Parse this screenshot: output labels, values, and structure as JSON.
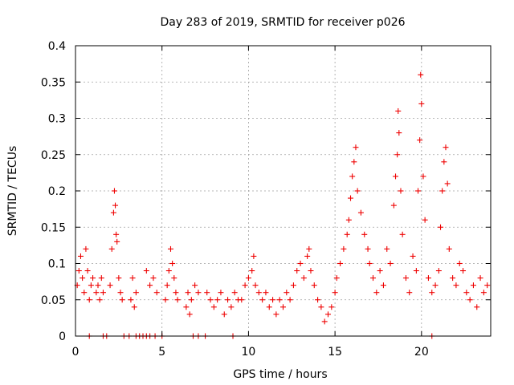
{
  "chart_data": {
    "type": "scatter",
    "title": "Day 283 of 2019, SRMTID for receiver p026",
    "xlabel": "GPS time / hours",
    "ylabel": "SRMTID / TECUs",
    "xlim": [
      0,
      24
    ],
    "ylim": [
      0,
      0.4
    ],
    "xticks": [
      0,
      5,
      10,
      15,
      20
    ],
    "xtick_labels": [
      "0",
      "5",
      "10",
      "15",
      "20"
    ],
    "yticks": [
      0,
      0.05,
      0.1,
      0.15,
      0.2,
      0.25,
      0.3,
      0.35,
      0.4
    ],
    "ytick_labels": [
      "0",
      "0.05",
      "0.1",
      "0.15",
      "0.2",
      "0.25",
      "0.3",
      "0.35",
      "0.4"
    ],
    "grid": true,
    "marker": "plus",
    "color": "#ee0000",
    "series": [
      {
        "name": "SRMTID",
        "points": [
          [
            0.1,
            0.07
          ],
          [
            0.2,
            0.09
          ],
          [
            0.3,
            0.11
          ],
          [
            0.4,
            0.08
          ],
          [
            0.5,
            0.06
          ],
          [
            0.6,
            0.12
          ],
          [
            0.7,
            0.09
          ],
          [
            0.8,
            0.05
          ],
          [
            0.9,
            0.07
          ],
          [
            1.0,
            0.08
          ],
          [
            1.2,
            0.06
          ],
          [
            1.3,
            0.07
          ],
          [
            1.4,
            0.05
          ],
          [
            1.5,
            0.08
          ],
          [
            1.6,
            0.06
          ],
          [
            2.0,
            0.07
          ],
          [
            2.1,
            0.12
          ],
          [
            2.2,
            0.17
          ],
          [
            2.25,
            0.2
          ],
          [
            2.3,
            0.18
          ],
          [
            2.35,
            0.14
          ],
          [
            2.4,
            0.13
          ],
          [
            2.5,
            0.08
          ],
          [
            2.6,
            0.06
          ],
          [
            2.7,
            0.05
          ],
          [
            3.2,
            0.05
          ],
          [
            3.3,
            0.08
          ],
          [
            3.4,
            0.04
          ],
          [
            3.5,
            0.06
          ],
          [
            4.1,
            0.09
          ],
          [
            4.3,
            0.07
          ],
          [
            4.5,
            0.08
          ],
          [
            4.7,
            0.06
          ],
          [
            5.2,
            0.05
          ],
          [
            5.3,
            0.07
          ],
          [
            5.4,
            0.09
          ],
          [
            5.5,
            0.12
          ],
          [
            5.6,
            0.1
          ],
          [
            5.7,
            0.08
          ],
          [
            5.8,
            0.06
          ],
          [
            5.9,
            0.05
          ],
          [
            6.4,
            0.04
          ],
          [
            6.5,
            0.06
          ],
          [
            6.6,
            0.03
          ],
          [
            6.7,
            0.05
          ],
          [
            6.9,
            0.07
          ],
          [
            7.1,
            0.06
          ],
          [
            7.6,
            0.06
          ],
          [
            7.8,
            0.05
          ],
          [
            8.0,
            0.04
          ],
          [
            8.2,
            0.05
          ],
          [
            8.4,
            0.06
          ],
          [
            8.6,
            0.03
          ],
          [
            8.8,
            0.05
          ],
          [
            9.0,
            0.04
          ],
          [
            9.2,
            0.06
          ],
          [
            9.4,
            0.05
          ],
          [
            9.6,
            0.05
          ],
          [
            9.8,
            0.07
          ],
          [
            10.0,
            0.08
          ],
          [
            10.2,
            0.09
          ],
          [
            10.3,
            0.11
          ],
          [
            10.4,
            0.07
          ],
          [
            10.6,
            0.06
          ],
          [
            10.8,
            0.05
          ],
          [
            11.0,
            0.06
          ],
          [
            11.2,
            0.04
          ],
          [
            11.4,
            0.05
          ],
          [
            11.6,
            0.03
          ],
          [
            11.8,
            0.05
          ],
          [
            12.0,
            0.04
          ],
          [
            12.2,
            0.06
          ],
          [
            12.4,
            0.05
          ],
          [
            12.6,
            0.07
          ],
          [
            12.8,
            0.09
          ],
          [
            13.0,
            0.1
          ],
          [
            13.2,
            0.08
          ],
          [
            13.4,
            0.11
          ],
          [
            13.5,
            0.12
          ],
          [
            13.6,
            0.09
          ],
          [
            13.8,
            0.07
          ],
          [
            14.0,
            0.05
          ],
          [
            14.2,
            0.04
          ],
          [
            14.4,
            0.02
          ],
          [
            14.6,
            0.03
          ],
          [
            14.8,
            0.04
          ],
          [
            15.0,
            0.06
          ],
          [
            15.1,
            0.08
          ],
          [
            15.3,
            0.1
          ],
          [
            15.5,
            0.12
          ],
          [
            15.7,
            0.14
          ],
          [
            15.8,
            0.16
          ],
          [
            15.9,
            0.19
          ],
          [
            16.0,
            0.22
          ],
          [
            16.1,
            0.24
          ],
          [
            16.2,
            0.26
          ],
          [
            16.3,
            0.2
          ],
          [
            16.5,
            0.17
          ],
          [
            16.7,
            0.14
          ],
          [
            16.9,
            0.12
          ],
          [
            17.0,
            0.1
          ],
          [
            17.2,
            0.08
          ],
          [
            17.4,
            0.06
          ],
          [
            17.6,
            0.09
          ],
          [
            17.8,
            0.07
          ],
          [
            18.0,
            0.12
          ],
          [
            18.2,
            0.1
          ],
          [
            18.4,
            0.18
          ],
          [
            18.5,
            0.22
          ],
          [
            18.6,
            0.25
          ],
          [
            18.65,
            0.31
          ],
          [
            18.7,
            0.28
          ],
          [
            18.8,
            0.2
          ],
          [
            18.9,
            0.14
          ],
          [
            19.1,
            0.08
          ],
          [
            19.3,
            0.06
          ],
          [
            19.5,
            0.11
          ],
          [
            19.7,
            0.09
          ],
          [
            19.8,
            0.2
          ],
          [
            19.9,
            0.27
          ],
          [
            19.95,
            0.36
          ],
          [
            20.0,
            0.32
          ],
          [
            20.1,
            0.22
          ],
          [
            20.2,
            0.16
          ],
          [
            20.4,
            0.08
          ],
          [
            20.6,
            0.06
          ],
          [
            20.8,
            0.07
          ],
          [
            21.0,
            0.09
          ],
          [
            21.1,
            0.15
          ],
          [
            21.2,
            0.2
          ],
          [
            21.3,
            0.24
          ],
          [
            21.4,
            0.26
          ],
          [
            21.5,
            0.21
          ],
          [
            21.6,
            0.12
          ],
          [
            21.8,
            0.08
          ],
          [
            22.0,
            0.07
          ],
          [
            22.2,
            0.1
          ],
          [
            22.4,
            0.09
          ],
          [
            22.6,
            0.06
          ],
          [
            22.8,
            0.05
          ],
          [
            23.0,
            0.07
          ],
          [
            23.2,
            0.04
          ],
          [
            23.4,
            0.08
          ],
          [
            23.6,
            0.06
          ],
          [
            23.8,
            0.07
          ]
        ]
      }
    ],
    "zero_points_x": [
      0.8,
      1.6,
      1.8,
      2.8,
      3.1,
      3.5,
      3.7,
      3.9,
      4.1,
      4.3,
      4.6,
      5.0,
      6.8,
      7.1,
      7.5,
      9.1,
      20.6
    ]
  }
}
